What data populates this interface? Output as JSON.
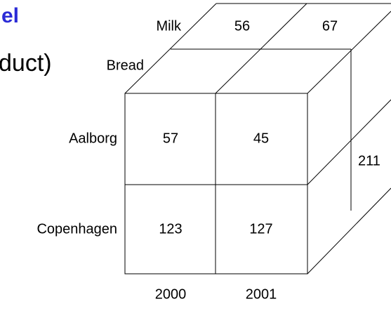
{
  "title": "el",
  "subtitle": "duct)",
  "cube": {
    "depth_labels": [
      "Milk",
      "Bread"
    ],
    "top_values": [
      "56",
      "67"
    ],
    "row_labels": [
      "Aalborg",
      "Copenhagen"
    ],
    "cells": [
      [
        "57",
        "45"
      ],
      [
        "123",
        "127"
      ]
    ],
    "side_value": "211",
    "column_labels": [
      "2000",
      "2001"
    ]
  }
}
